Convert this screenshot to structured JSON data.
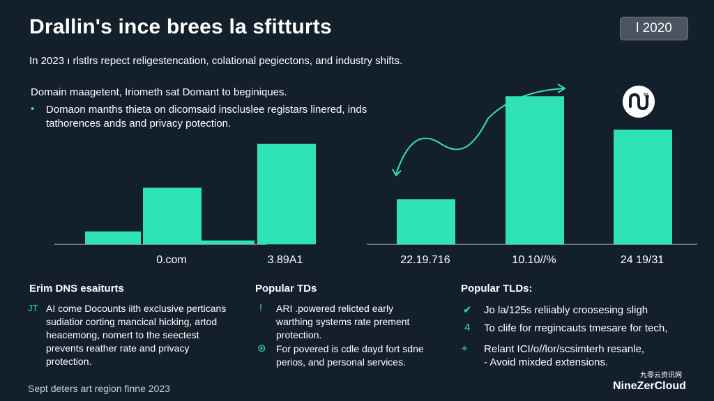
{
  "header": {
    "title": "Drallin's ince brees la sfitturts",
    "badge": "Ɩ 2020",
    "subtitle": "In 2023 ı rlstlrs repect religestencation, colational pegiectons, and industry shifts."
  },
  "intro": {
    "heading": "Domain maagetent, Iriometh sat Domant to beginiques.",
    "bullet": "Domaon manths thieta on dicomsaid inscluslee registars linered, inds tathorences ands and privacy potection."
  },
  "chart_data": [
    {
      "type": "bar",
      "categories": [
        "",
        "0.com",
        "",
        "3.89A1"
      ],
      "values": [
        1.0,
        4.4,
        0.3,
        7.8
      ],
      "tick_labels": [
        "0.com",
        "3.89A1"
      ],
      "grid": false,
      "color": "#2fe3b4"
    },
    {
      "type": "bar",
      "categories": [
        "22.19.716",
        "10.10//%",
        "24 19/31"
      ],
      "values": [
        3.5,
        11.5,
        8.9
      ],
      "tick_labels": [
        "22.19.716",
        "10.10//%",
        "24 19/31"
      ],
      "trend_line": true,
      "grid": false,
      "color": "#2fe3b4"
    }
  ],
  "columns": [
    {
      "title": "Erim DNS esaiturts",
      "items": [
        {
          "icon": "tag-icon",
          "glyph": "JT",
          "text": "AI come Docounts iith exclusive perticans sudiatior corting mancical hicking, artod heacemong, nomert to the seectest prevents reather rate and privacy protection."
        }
      ]
    },
    {
      "title": "Popular TDs",
      "items": [
        {
          "icon": "info-icon",
          "glyph": "!",
          "text": "ARI .powered relicted early warthing systems rate prement protection."
        },
        {
          "icon": "globe-icon",
          "glyph": "⊛",
          "text": "For povered is cdle dayd fort sdne perios, and personal services."
        }
      ]
    },
    {
      "title": "Popular TLDs:",
      "items": [
        {
          "icon": "shield-check-icon",
          "glyph": "✔",
          "text": "Jo la/125s reliiably croosesing sligh"
        },
        {
          "icon": "number-four-icon",
          "glyph": "4",
          "text": "To clife for rregincauts tmesare for tech,"
        },
        {
          "icon": "lock-icon",
          "glyph": "⌖",
          "text": "Relant ICI/o//lor/scsimterh resanle,"
        },
        {
          "icon": "dash-icon",
          "glyph": "",
          "text": "- Avoid mixded extensions."
        }
      ]
    }
  ],
  "footer": {
    "note": "Sept deters art region finne 2023",
    "brand_cn": "九零云资讯网",
    "brand": "NineZerCloud"
  },
  "colors": {
    "background": "#141f2c",
    "accent": "#2fe3b4",
    "badge": "#4a5561"
  }
}
